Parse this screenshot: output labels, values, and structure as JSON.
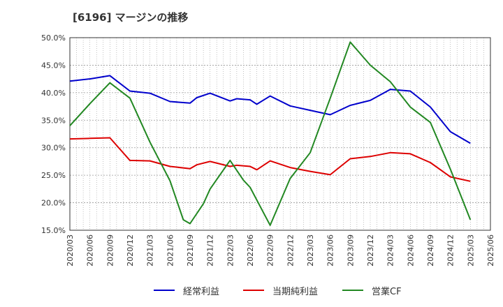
{
  "title": "[6196]  マージンの推移",
  "chart_data": {
    "type": "line",
    "title": "[6196]  マージンの推移",
    "xlabel": "",
    "ylabel": "",
    "ylim": [
      15,
      50
    ],
    "yticks": [
      "15.0%",
      "20.0%",
      "25.0%",
      "30.0%",
      "35.0%",
      "40.0%",
      "45.0%",
      "50.0%"
    ],
    "x": [
      "2020/03",
      "2020/06",
      "2020/09",
      "2020/12",
      "2021/03",
      "2021/06",
      "2021/09",
      "2021/12",
      "2022/03",
      "2022/06",
      "2022/09",
      "2022/12",
      "2023/03",
      "2023/06",
      "2023/09",
      "2023/12",
      "2024/03",
      "2024/06",
      "2024/09",
      "2024/12",
      "2025/03",
      "2025/06"
    ],
    "grid": true,
    "legend_position": "bottom",
    "series": [
      {
        "name": "経常利益",
        "color": "#0000cc",
        "points": [
          [
            "2020/03",
            42.1
          ],
          [
            "2020/06",
            42.5
          ],
          [
            "2020/09",
            43.1
          ],
          [
            "2020/12",
            40.3
          ],
          [
            "2021/03",
            39.9
          ],
          [
            "2021/06",
            38.4
          ],
          [
            "2021/09",
            38.1
          ],
          [
            "2021/10",
            39.1
          ],
          [
            "2021/12",
            39.9
          ],
          [
            "2022/03",
            38.5
          ],
          [
            "2022/04",
            38.9
          ],
          [
            "2022/06",
            38.7
          ],
          [
            "2022/07",
            37.9
          ],
          [
            "2022/09",
            39.4
          ],
          [
            "2022/12",
            37.6
          ],
          [
            "2023/03",
            36.8
          ],
          [
            "2023/06",
            36.0
          ],
          [
            "2023/09",
            37.7
          ],
          [
            "2023/12",
            38.6
          ],
          [
            "2024/03",
            40.6
          ],
          [
            "2024/06",
            40.3
          ],
          [
            "2024/09",
            37.4
          ],
          [
            "2024/12",
            32.9
          ],
          [
            "2025/03",
            30.8
          ]
        ]
      },
      {
        "name": "当期純利益",
        "color": "#dd0000",
        "points": [
          [
            "2020/03",
            31.6
          ],
          [
            "2020/06",
            31.7
          ],
          [
            "2020/09",
            31.8
          ],
          [
            "2020/12",
            27.7
          ],
          [
            "2021/03",
            27.6
          ],
          [
            "2021/06",
            26.6
          ],
          [
            "2021/09",
            26.2
          ],
          [
            "2021/10",
            26.9
          ],
          [
            "2021/12",
            27.5
          ],
          [
            "2022/03",
            26.6
          ],
          [
            "2022/04",
            26.8
          ],
          [
            "2022/06",
            26.6
          ],
          [
            "2022/07",
            26.0
          ],
          [
            "2022/09",
            27.6
          ],
          [
            "2022/12",
            26.4
          ],
          [
            "2023/03",
            25.7
          ],
          [
            "2023/06",
            25.1
          ],
          [
            "2023/09",
            28.0
          ],
          [
            "2023/12",
            28.4
          ],
          [
            "2024/03",
            29.1
          ],
          [
            "2024/06",
            28.9
          ],
          [
            "2024/09",
            27.3
          ],
          [
            "2024/12",
            24.7
          ],
          [
            "2025/03",
            23.9
          ]
        ]
      },
      {
        "name": "営業CF",
        "color": "#228822",
        "points": [
          [
            "2020/03",
            34.0
          ],
          [
            "2020/06",
            38.0
          ],
          [
            "2020/09",
            41.8
          ],
          [
            "2020/12",
            39.0
          ],
          [
            "2021/03",
            31.0
          ],
          [
            "2021/06",
            24.0
          ],
          [
            "2021/08",
            16.9
          ],
          [
            "2021/09",
            16.2
          ],
          [
            "2021/11",
            19.8
          ],
          [
            "2021/12",
            22.5
          ],
          [
            "2022/03",
            27.7
          ],
          [
            "2022/05",
            24.1
          ],
          [
            "2022/06",
            22.8
          ],
          [
            "2022/09",
            15.9
          ],
          [
            "2022/12",
            24.4
          ],
          [
            "2023/03",
            29.1
          ],
          [
            "2023/06",
            39.0
          ],
          [
            "2023/09",
            49.2
          ],
          [
            "2023/12",
            45.0
          ],
          [
            "2024/03",
            42.0
          ],
          [
            "2024/06",
            37.4
          ],
          [
            "2024/09",
            34.6
          ],
          [
            "2024/12",
            26.1
          ],
          [
            "2025/03",
            16.9
          ]
        ]
      }
    ]
  }
}
